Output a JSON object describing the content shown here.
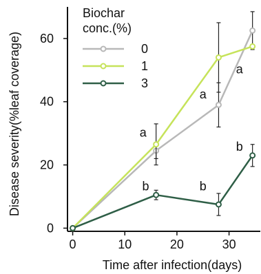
{
  "chart_data": {
    "type": "line",
    "title": "",
    "xlabel": "Time after infection(days)",
    "ylabel": "Disease severity(%leaf coverage)",
    "xlim": [
      -1,
      36
    ],
    "ylim": [
      -1,
      70
    ],
    "xticks": [
      0,
      10,
      20,
      30
    ],
    "yticks": [
      0,
      20,
      40,
      60
    ],
    "grid": false,
    "legend": {
      "title_lines": [
        "Biochar",
        "conc.(%)"
      ],
      "placement": "top-left"
    },
    "series": [
      {
        "name": "0",
        "color": "#b8b8b8",
        "x": [
          0,
          16,
          28,
          34.5
        ],
        "y": [
          0,
          24.5,
          39,
          62.5
        ],
        "err": [
          0,
          2.5,
          7,
          6
        ]
      },
      {
        "name": "1",
        "color": "#c6e35a",
        "x": [
          0,
          16,
          28,
          34.5
        ],
        "y": [
          0,
          26.5,
          54,
          57.5
        ],
        "err": [
          0,
          6.5,
          11,
          0
        ]
      },
      {
        "name": "3",
        "color": "#2e5e46",
        "x": [
          0,
          16,
          28,
          34.5
        ],
        "y": [
          0,
          10.5,
          7.5,
          23
        ],
        "err": [
          0,
          1.5,
          3.5,
          3.5
        ]
      }
    ],
    "annotations": [
      {
        "text": "a",
        "x": 13.5,
        "y": 29
      },
      {
        "text": "a",
        "x": 25,
        "y": 41
      },
      {
        "text": "a",
        "x": 32,
        "y": 49
      },
      {
        "text": "b",
        "x": 14,
        "y": 12
      },
      {
        "text": "b",
        "x": 25,
        "y": 12
      },
      {
        "text": "b",
        "x": 32,
        "y": 24.5
      }
    ]
  }
}
